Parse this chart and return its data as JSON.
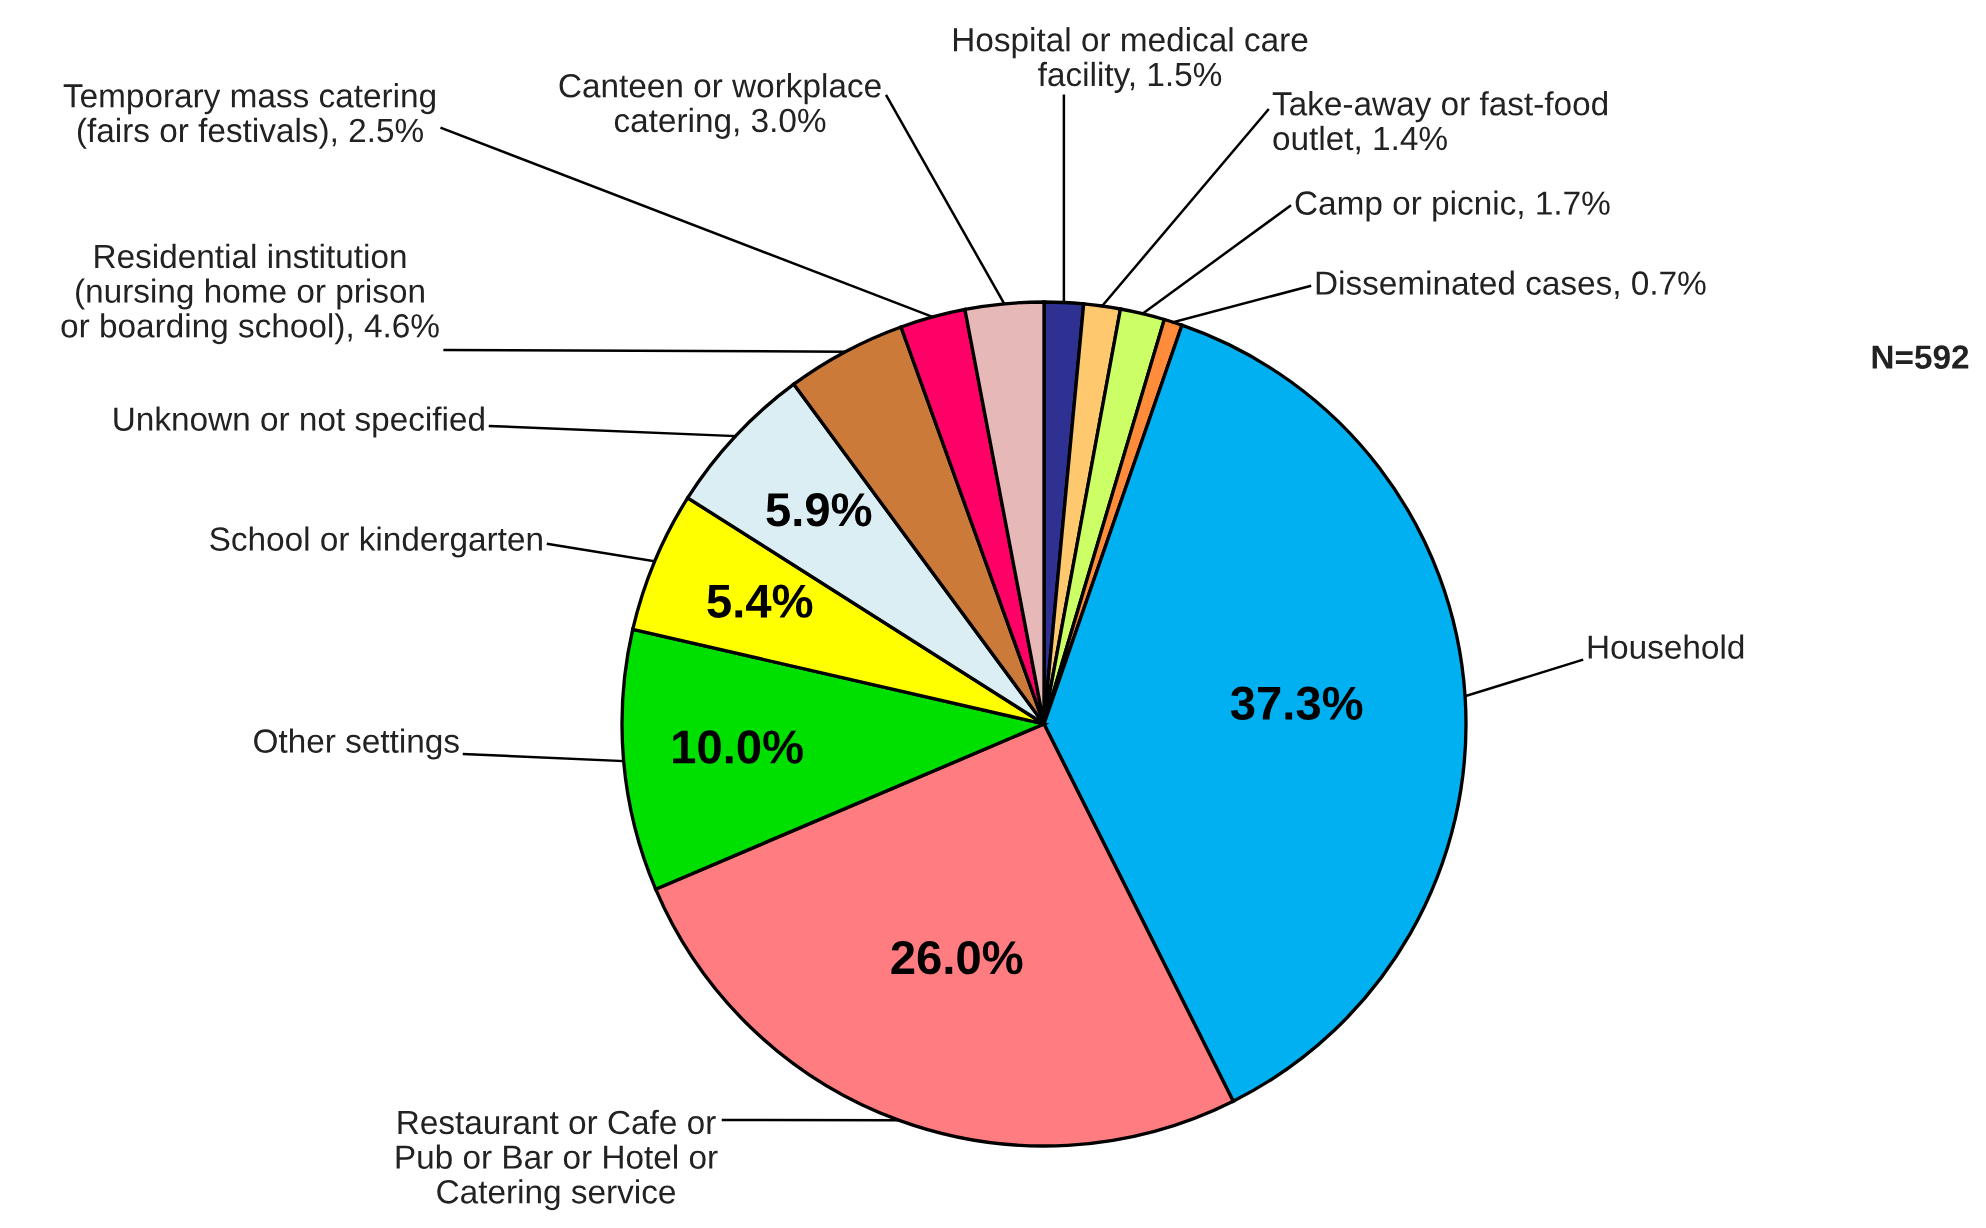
{
  "chart_data": {
    "type": "pie",
    "categories": [
      "Hospital or medical care\nfacility",
      "Take-away or fast-food\noutlet",
      "Camp or picnic",
      "Disseminated cases",
      "Household",
      "Restaurant or Cafe or\nPub or Bar or Hotel or\nCatering service",
      "Other settings",
      "School or kindergarten",
      "Unknown or not specified",
      "Residential institution\n(nursing home or prison\nor boarding school)",
      "Temporary mass catering\n(fairs or festivals)",
      "Canteen or workplace\ncatering"
    ],
    "values": [
      1.5,
      1.4,
      1.7,
      0.7,
      37.3,
      26.0,
      10.0,
      5.4,
      5.9,
      4.6,
      2.5,
      3.0
    ],
    "colors": [
      "#2e3192",
      "#fdc86e",
      "#ccff66",
      "#ff8c3a",
      "#00b0f0",
      "#ff7c80",
      "#00e000",
      "#ffff00",
      "#daeef3",
      "#cc7a3a",
      "#ff0066",
      "#e6b9b8"
    ],
    "value_labels": [
      "1.5%",
      "1.4%",
      "1.7%",
      "0.7%",
      "37.3%",
      "26.0%",
      "10.0%",
      "5.4%",
      "5.9%",
      "4.6%",
      "2.5%",
      "3.0%"
    ],
    "annotations": [
      "N=592"
    ],
    "legend": false
  }
}
